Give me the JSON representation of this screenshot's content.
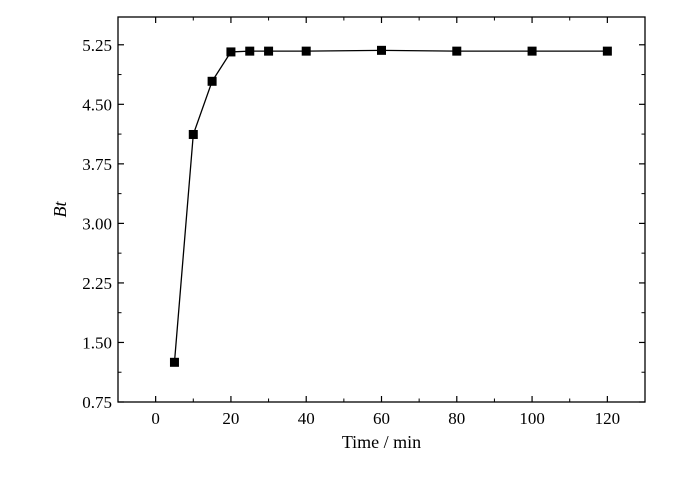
{
  "chart_data": {
    "type": "line",
    "xlabel": "Time / min",
    "ylabel": "Bt",
    "xlim": [
      -10,
      130
    ],
    "ylim": [
      0.75,
      5.6
    ],
    "xticks": [
      "0",
      "20",
      "40",
      "60",
      "80",
      "100",
      "120"
    ],
    "yticks": [
      "0.75",
      "1.50",
      "2.25",
      "3.00",
      "3.75",
      "4.50",
      "5.25"
    ],
    "grid": false,
    "legend": "none",
    "marker": "square",
    "line_color": "#000000",
    "series": [
      {
        "x": [
          5,
          10,
          15,
          20,
          25,
          30,
          40,
          60,
          80,
          100,
          120
        ],
        "y": [
          1.25,
          4.12,
          4.79,
          5.16,
          5.17,
          5.17,
          5.17,
          5.18,
          5.17,
          5.17,
          5.17
        ]
      }
    ]
  }
}
